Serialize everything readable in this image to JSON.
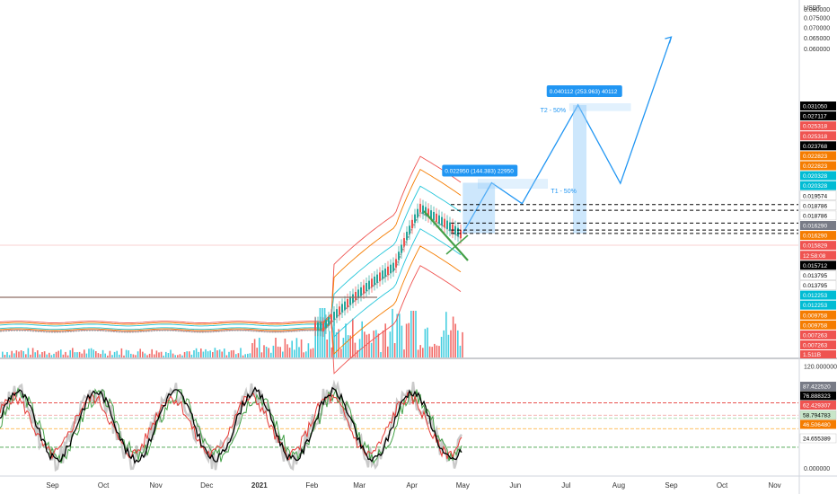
{
  "chart_data": [
    {
      "type": "line",
      "pane": "price",
      "currency": "USDT",
      "y_scale": "log",
      "ylim": [
        0.0065,
        0.0855
      ],
      "y_ticks": [
        "0.085000",
        "0.080000",
        "0.075000",
        "0.070000",
        "0.065000",
        "0.060000"
      ],
      "x_months": [
        "Sep",
        "Oct",
        "Nov",
        "Dec",
        "2021",
        "Feb",
        "Mar",
        "Apr",
        "May",
        "Jun",
        "Jul",
        "Aug",
        "Sep",
        "Oct",
        "Nov"
      ],
      "price_badges": [
        {
          "value": "0.031050",
          "color": "#000000"
        },
        {
          "value": "0.027117",
          "color": "#000000"
        },
        {
          "value": "0.025318",
          "color": "#ef5350"
        },
        {
          "value": "0.025318",
          "color": "#ef5350"
        },
        {
          "value": "0.023768",
          "color": "#000000"
        },
        {
          "value": "0.022823",
          "color": "#f57c00"
        },
        {
          "value": "0.022823",
          "color": "#f57c00"
        },
        {
          "value": "0.020328",
          "color": "#00bcd4"
        },
        {
          "value": "0.020328",
          "color": "#00bcd4"
        },
        {
          "value": "0.019574",
          "color": "#ffffff"
        },
        {
          "value": "0.018786",
          "color": "#ffffff"
        },
        {
          "value": "0.018786",
          "color": "#ffffff"
        },
        {
          "value": "0.016290",
          "color": "#787b86"
        },
        {
          "value": "0.016290",
          "color": "#f57c00"
        },
        {
          "value": "0.015829",
          "color": "#ef5350"
        },
        {
          "value": "12:58:08",
          "color": "#ef5350"
        },
        {
          "value": "0.015712",
          "color": "#000000"
        },
        {
          "value": "0.013795",
          "color": "#ffffff"
        },
        {
          "value": "0.013795",
          "color": "#ffffff"
        },
        {
          "value": "0.012253",
          "color": "#00bcd4"
        },
        {
          "value": "0.012253",
          "color": "#00bcd4"
        },
        {
          "value": "0.009758",
          "color": "#f57c00"
        },
        {
          "value": "0.009758",
          "color": "#f57c00"
        },
        {
          "value": "0.007263",
          "color": "#ef5350"
        },
        {
          "value": "0.007263",
          "color": "#ef5350"
        }
      ],
      "volume_badge": {
        "value": "1.511B",
        "color": "#ef5350"
      },
      "projection_path": [
        {
          "date": "2021-05-01",
          "price": 0.0159
        },
        {
          "date": "2021-05-18",
          "price": 0.0229
        },
        {
          "date": "2021-06-05",
          "price": 0.0197
        },
        {
          "date": "2021-07-08",
          "price": 0.0401
        },
        {
          "date": "2021-08-02",
          "price": 0.0228
        },
        {
          "date": "2021-09-01",
          "price": 0.0655
        }
      ],
      "targets": [
        {
          "label": "T1 - 50%",
          "measure": "0.022950 (144.383) 22950"
        },
        {
          "label": "T2 - 50%",
          "measure": "0.040112 (253.963) 40112"
        }
      ],
      "dashed_levels": [
        0.019574,
        0.018786,
        0.01712,
        0.01629
      ]
    },
    {
      "type": "line",
      "pane": "oscillator",
      "ylim": [
        -6,
        124
      ],
      "y_ticks": [
        "120.000000",
        "0.000000"
      ],
      "badges": [
        {
          "value": "87.422520",
          "color": "#787b86"
        },
        {
          "value": "76.888323",
          "color": "#000000"
        },
        {
          "value": "62.429307",
          "color": "#ef5350"
        },
        {
          "value": "58.794783",
          "color": "#c8e6c9"
        },
        {
          "value": "46.506480",
          "color": "#f57c00"
        },
        {
          "value": "24.655389",
          "color": "#ffffff"
        }
      ],
      "levels": [
        {
          "value": 76.9,
          "color": "#e53935"
        },
        {
          "value": 62.4,
          "color": "#ef9a9a"
        },
        {
          "value": 58.8,
          "color": "#a5d6a7"
        },
        {
          "value": 46.5,
          "color": "#ffb74d"
        },
        {
          "value": 24.7,
          "color": "#43a047"
        }
      ]
    }
  ]
}
